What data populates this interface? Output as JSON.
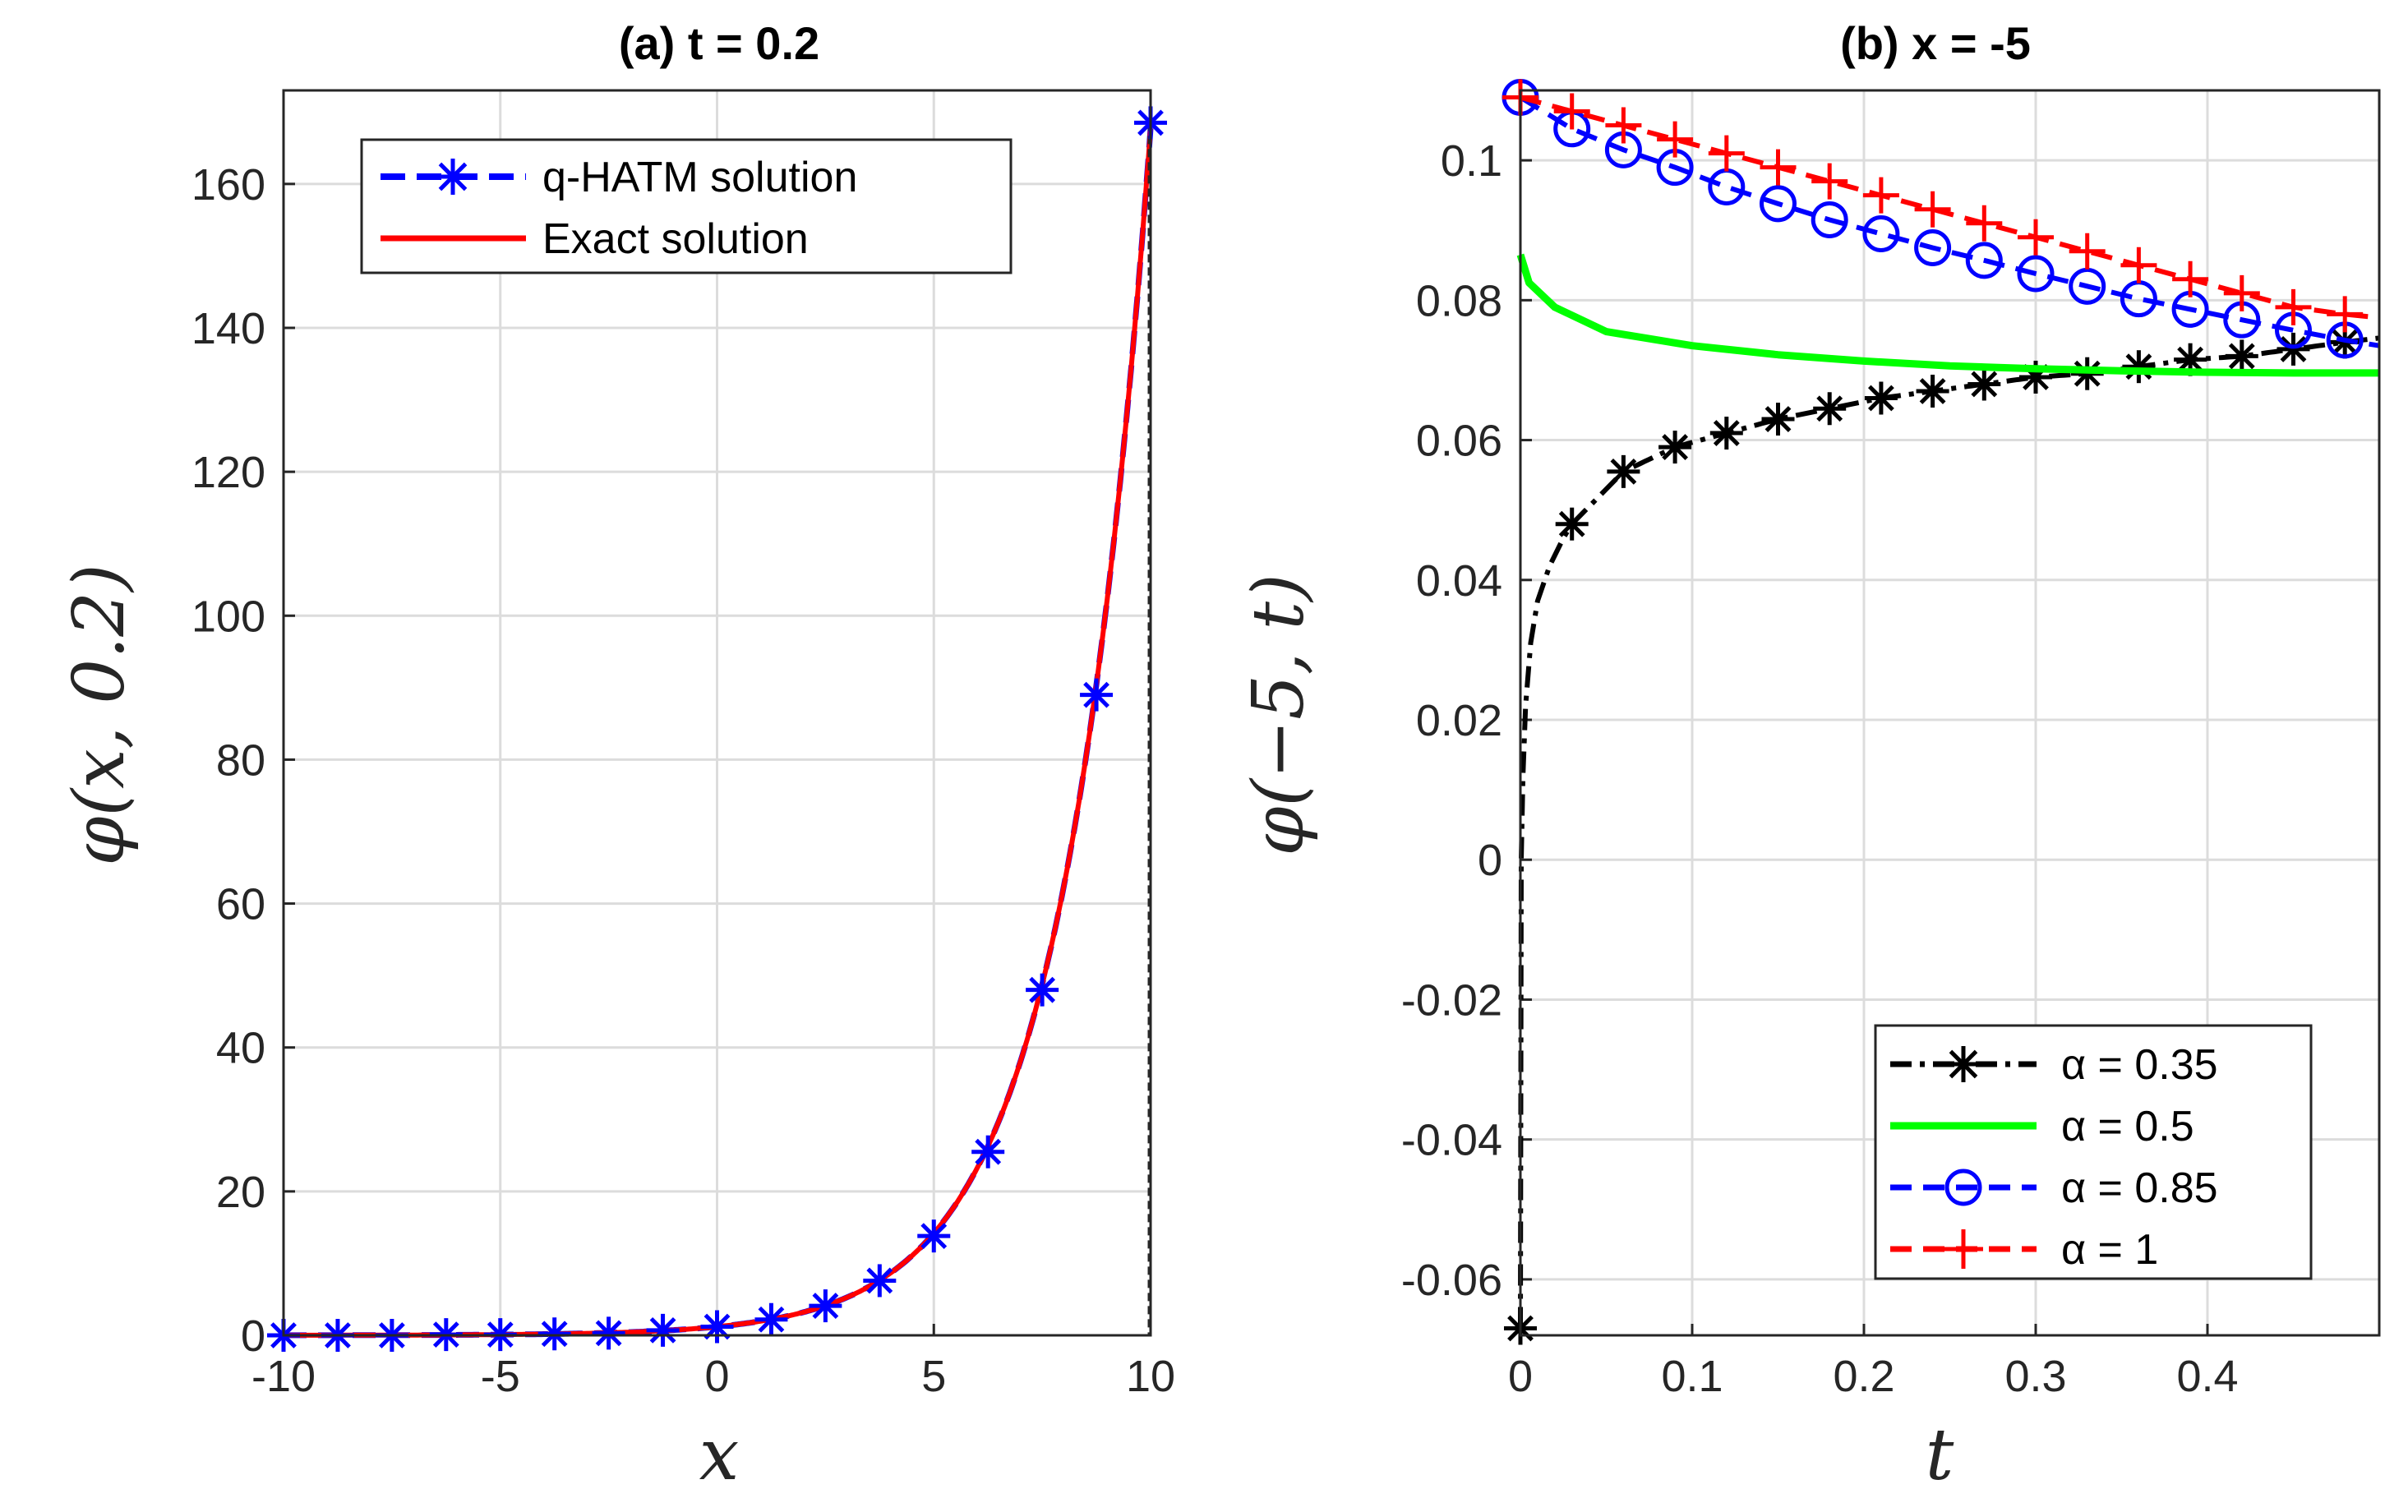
{
  "chart_data": [
    {
      "type": "line",
      "title": "(a)  t = 0.2",
      "xlabel": "x",
      "ylabel": "φ(x, 0.2)",
      "xlim": [
        -10,
        10
      ],
      "ylim": [
        0,
        173
      ],
      "xticks": [
        -10,
        -5,
        0,
        5,
        10
      ],
      "yticks": [
        0,
        20,
        40,
        60,
        80,
        100,
        120,
        140,
        160
      ],
      "grid": true,
      "legend_position": "top-right",
      "series": [
        {
          "name": "q-HATM solution",
          "style": "dashed-with-star-markers",
          "color": "#0000ff",
          "x": [
            -10,
            -8.75,
            -7.5,
            -6.25,
            -5,
            -3.75,
            -2.5,
            -1.25,
            0,
            1.25,
            2.5,
            3.75,
            5,
            6.25,
            7.5,
            8.75,
            10
          ],
          "values": [
            0.0,
            0.0,
            0.0,
            0.1,
            0.1,
            0.2,
            0.3,
            0.7,
            1.2,
            2.2,
            4.1,
            7.6,
            13.8,
            25.5,
            48.0,
            89.0,
            168.5
          ]
        },
        {
          "name": "Exact solution",
          "style": "solid",
          "color": "#ff0000",
          "function": "1.2*exp(0.494*x)"
        }
      ]
    },
    {
      "type": "line",
      "title": "(b)  x = -5",
      "xlabel": "t",
      "ylabel": "φ(−5, t)",
      "xlim": [
        0,
        0.5
      ],
      "ylim": [
        -0.068,
        0.11
      ],
      "xticks": [
        0,
        0.1,
        0.2,
        0.3,
        0.4
      ],
      "yticks": [
        -0.06,
        -0.04,
        -0.02,
        0,
        0.02,
        0.04,
        0.06,
        0.08,
        0.1
      ],
      "grid": true,
      "legend_position": "bottom-right",
      "series": [
        {
          "name": "α = 0.35",
          "style": "dash-dot-with-star-markers",
          "color": "#000000",
          "marker_x": [
            0,
            0.03,
            0.06,
            0.09,
            0.12,
            0.15,
            0.18,
            0.21,
            0.24,
            0.27,
            0.3,
            0.33,
            0.36,
            0.39,
            0.42,
            0.45,
            0.48
          ],
          "values": [
            -0.067,
            0.048,
            0.0555,
            0.059,
            0.061,
            0.063,
            0.0645,
            0.066,
            0.067,
            0.068,
            0.069,
            0.0695,
            0.0705,
            0.0715,
            0.072,
            0.073,
            0.074
          ]
        },
        {
          "name": "α = 0.5",
          "style": "solid",
          "color": "#00ff00",
          "x": [
            0,
            0.005,
            0.02,
            0.05,
            0.1,
            0.15,
            0.2,
            0.25,
            0.3,
            0.35,
            0.4,
            0.45,
            0.5
          ],
          "values": [
            0.0865,
            0.0825,
            0.079,
            0.0755,
            0.0735,
            0.0722,
            0.0713,
            0.0706,
            0.0702,
            0.0699,
            0.0697,
            0.0696,
            0.0696
          ]
        },
        {
          "name": "α = 0.85",
          "style": "dashed-with-circle-markers",
          "color": "#0000ff",
          "marker_x": [
            0,
            0.03,
            0.06,
            0.09,
            0.12,
            0.15,
            0.18,
            0.21,
            0.24,
            0.27,
            0.3,
            0.33,
            0.36,
            0.39,
            0.42,
            0.45,
            0.48
          ],
          "values": [
            0.109,
            0.1045,
            0.1015,
            0.099,
            0.0962,
            0.0938,
            0.0915,
            0.0895,
            0.0875,
            0.0857,
            0.0838,
            0.082,
            0.0802,
            0.0787,
            0.0772,
            0.0757,
            0.0743
          ]
        },
        {
          "name": "α = 1",
          "style": "dashed-with-plus-markers",
          "color": "#ff0000",
          "marker_x": [
            0,
            0.03,
            0.06,
            0.09,
            0.12,
            0.15,
            0.18,
            0.21,
            0.24,
            0.27,
            0.3,
            0.33,
            0.36,
            0.39,
            0.42,
            0.45,
            0.48
          ],
          "values": [
            0.109,
            0.107,
            0.105,
            0.103,
            0.101,
            0.099,
            0.097,
            0.095,
            0.093,
            0.091,
            0.089,
            0.087,
            0.085,
            0.083,
            0.081,
            0.079,
            0.078
          ]
        }
      ]
    }
  ]
}
